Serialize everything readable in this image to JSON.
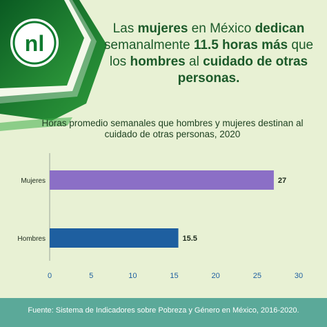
{
  "brand": {
    "logo_text": "nl",
    "green": "#0f7a2f",
    "light_green": "#3fae49"
  },
  "headline": {
    "parts": [
      {
        "text": "Las ",
        "bold": false
      },
      {
        "text": "mujeres",
        "bold": true
      },
      {
        "text": " en México ",
        "bold": false
      },
      {
        "text": "dedican",
        "bold": true
      },
      {
        "text": " semanalmente ",
        "bold": false
      },
      {
        "text": "11.5 horas",
        "bold": true
      },
      {
        "text": " ",
        "bold": false
      },
      {
        "text": "más",
        "bold": true
      },
      {
        "text": " que los ",
        "bold": false
      },
      {
        "text": "hombres",
        "bold": true
      },
      {
        "text": " al ",
        "bold": false
      },
      {
        "text": "cuidado de otras personas.",
        "bold": true
      }
    ]
  },
  "chart_data": {
    "type": "bar",
    "orientation": "horizontal",
    "title": "Horas promedio semanales que hombres y mujeres destinan al cuidado de otras personas, 2020",
    "categories": [
      "Mujeres",
      "Hombres"
    ],
    "values": [
      27,
      15.5
    ],
    "value_labels": [
      "27",
      "15.5"
    ],
    "colors": [
      "#8b6fc6",
      "#1e5fa0"
    ],
    "xlim": [
      0,
      30
    ],
    "xticks": [
      "0",
      "5",
      "10",
      "15",
      "20",
      "25",
      "30"
    ],
    "grid": false
  },
  "footer": {
    "source": "Fuente: Sistema de Indicadores sobre Pobreza y Género en México, 2016-2020."
  }
}
